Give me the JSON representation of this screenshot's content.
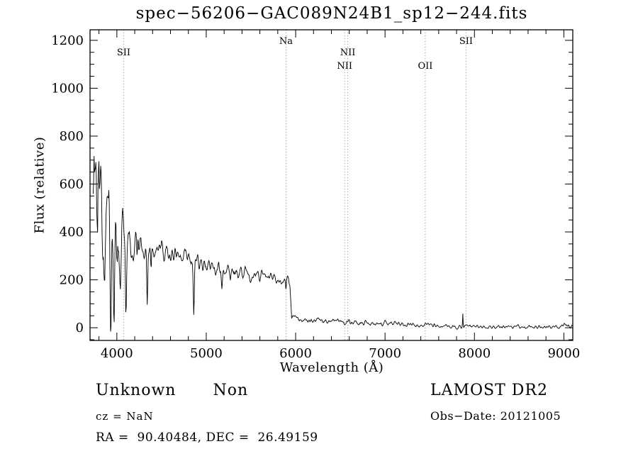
{
  "footer": {
    "class_label": "Unknown",
    "subclass_label": "Non",
    "survey_label": "LAMOST DR2",
    "cz_label": "cz = NaN",
    "obs_date_label": "Obs−Date: 20121005",
    "radec_label": "RA =  90.40484, DEC =  26.49159"
  },
  "chart_data": {
    "type": "line",
    "title": "spec−56206−GAC089N24B1_sp12−244.fits",
    "xlabel": "Wavelength (Å)",
    "ylabel": "Flux (relative)",
    "xlim": [
      3700,
      9100
    ],
    "ylim": [
      -53,
      1244
    ],
    "x_ticks": [
      4000,
      5000,
      6000,
      7000,
      8000,
      9000
    ],
    "x_minor_step": 200,
    "y_ticks": [
      0,
      200,
      400,
      600,
      800,
      1000,
      1200
    ],
    "y_minor_step": 50,
    "grid": false,
    "line_color": "#000000",
    "marker_line_color": "#8a8a8a",
    "spectral_lines": [
      {
        "label": "SII",
        "wavelength": 4076,
        "row": 1
      },
      {
        "label": "Na",
        "wavelength": 5892,
        "row": 0
      },
      {
        "label": "NII",
        "wavelength": 6548,
        "row": 2
      },
      {
        "label": "NII",
        "wavelength": 6583,
        "row": 1
      },
      {
        "label": "OII",
        "wavelength": 7450,
        "row": 2
      },
      {
        "label": "SII",
        "wavelength": 7906,
        "row": 0
      }
    ],
    "spectrum_model": {
      "seed": 56206,
      "sample_step": 5,
      "x_start": 3735,
      "x_end": 9100,
      "clamp_min": -16,
      "clamp_max": 955,
      "continuum": [
        [
          3735,
          600,
          340
        ],
        [
          3800,
          480,
          380
        ],
        [
          3850,
          440,
          330
        ],
        [
          3900,
          405,
          300
        ],
        [
          3950,
          375,
          265
        ],
        [
          4000,
          345,
          215
        ],
        [
          4050,
          332,
          165
        ],
        [
          4100,
          330,
          115
        ],
        [
          4150,
          342,
          75
        ],
        [
          4250,
          356,
          55
        ],
        [
          4400,
          332,
          46
        ],
        [
          4600,
          306,
          40
        ],
        [
          4800,
          286,
          36
        ],
        [
          5000,
          262,
          33
        ],
        [
          5200,
          243,
          30
        ],
        [
          5500,
          222,
          28
        ],
        [
          5800,
          206,
          25
        ],
        [
          5900,
          198,
          22
        ],
        [
          5935,
          192,
          20
        ],
        [
          5955,
          48,
          16
        ],
        [
          6050,
          38,
          15
        ],
        [
          6200,
          32,
          14
        ],
        [
          6400,
          26,
          13
        ],
        [
          6700,
          20,
          12
        ],
        [
          7000,
          16,
          11
        ],
        [
          7300,
          12,
          10
        ],
        [
          7600,
          8,
          9
        ],
        [
          8000,
          5,
          8
        ],
        [
          8400,
          3,
          8
        ],
        [
          8800,
          4,
          8
        ],
        [
          9100,
          9,
          10
        ]
      ],
      "absorption_lines": [
        [
          3933,
          250,
          7
        ],
        [
          3968,
          235,
          7
        ],
        [
          4101,
          255,
          8
        ],
        [
          4227,
          95,
          6
        ],
        [
          4340,
          262,
          8
        ],
        [
          4383,
          85,
          6
        ],
        [
          4861,
          212,
          8
        ],
        [
          5175,
          72,
          9
        ],
        [
          5269,
          48,
          7
        ],
        [
          5892,
          45,
          6
        ],
        [
          6870,
          12,
          10
        ],
        [
          7605,
          10,
          12
        ]
      ],
      "emission_lines": [
        [
          3745,
          210,
          8
        ],
        [
          7870,
          52,
          4
        ]
      ]
    }
  }
}
